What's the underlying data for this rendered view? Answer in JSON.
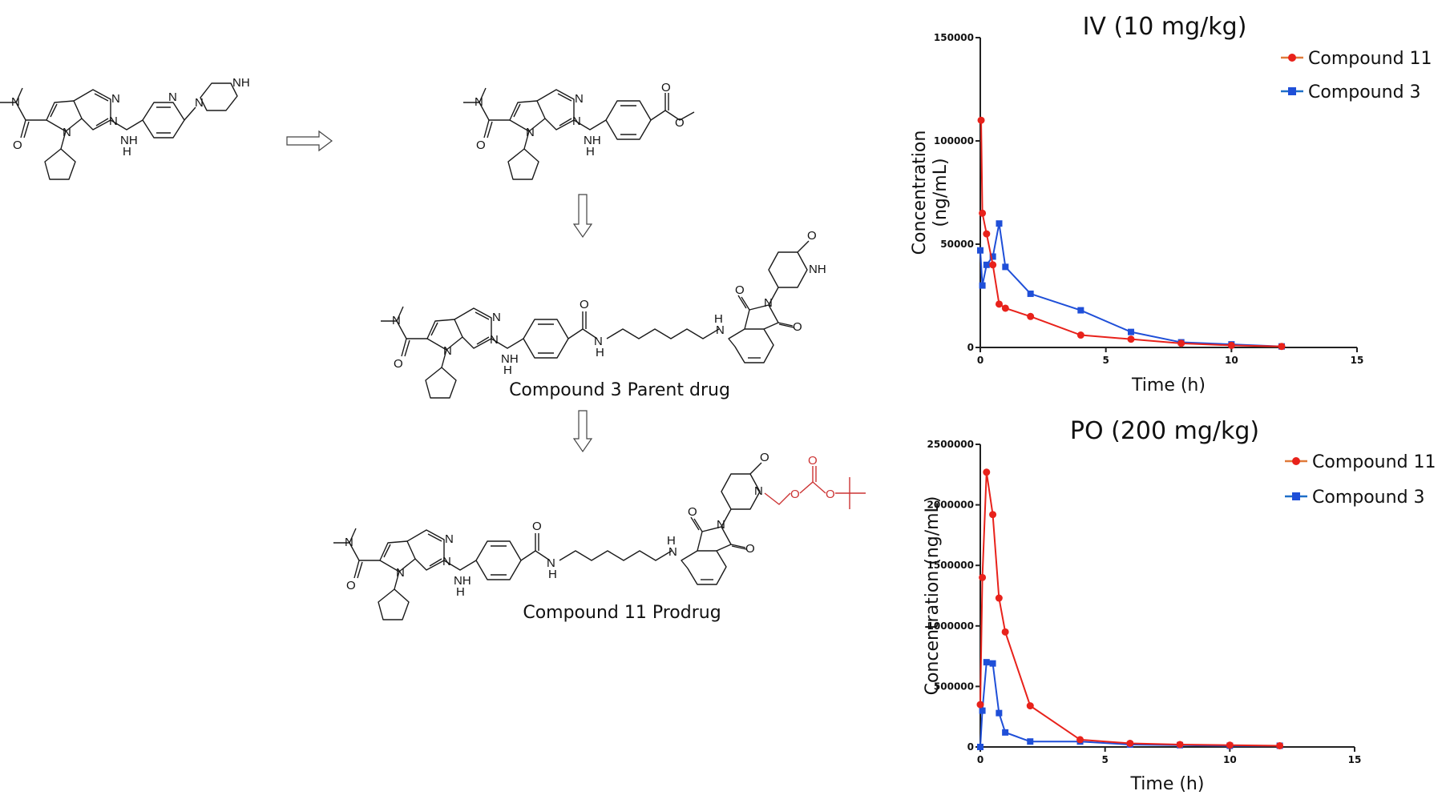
{
  "captions": {
    "parent": "Compound 3 Parent drug",
    "prodrug": "Compound 11 Prodrug"
  },
  "atoms": {
    "N": "N",
    "NH": "NH",
    "H": "H",
    "O": "O"
  },
  "colors": {
    "compound11": "#e8221b",
    "compound3": "#1f4fd8",
    "legend11_line": "#e07a3a",
    "legend3_line": "#1f6fc8",
    "prodrug_group": "#cc3333"
  },
  "chart_data": [
    {
      "type": "line",
      "title": "IV (10 mg/kg)",
      "xlabel": "Time (h)",
      "ylabel": "Concentration (ng/mL)",
      "ylabel_lines": [
        "Concentration",
        "(ng/mL)"
      ],
      "xlim": [
        0,
        15
      ],
      "ylim": [
        0,
        150000
      ],
      "xticks": [
        0,
        5,
        10,
        15
      ],
      "yticks": [
        0,
        50000,
        100000,
        150000
      ],
      "ytick_labels": [
        "0",
        "50000",
        "100000",
        "150000"
      ],
      "grid": false,
      "legend_position": "top-right",
      "series": [
        {
          "name": "Compound 11",
          "marker": "circle",
          "x": [
            0.033,
            0.083,
            0.25,
            0.5,
            0.75,
            1,
            2,
            4,
            6,
            8,
            10,
            12
          ],
          "y": [
            110000,
            65000,
            55000,
            40000,
            21000,
            19000,
            15000,
            6000,
            4000,
            2000,
            1000,
            500
          ]
        },
        {
          "name": "Compound 3",
          "marker": "square",
          "x": [
            0,
            0.083,
            0.25,
            0.5,
            0.75,
            1,
            2,
            4,
            6,
            8,
            10,
            12
          ],
          "y": [
            47000,
            30000,
            40000,
            44000,
            60000,
            39000,
            26000,
            18000,
            7500,
            2500,
            1500,
            500
          ]
        }
      ]
    },
    {
      "type": "line",
      "title": "PO (200 mg/kg)",
      "xlabel": "Time (h)",
      "ylabel": "Concentration (ng/mL)",
      "ylabel_lines": [
        "Concentration (ng/mL)"
      ],
      "xlim": [
        0,
        15
      ],
      "ylim": [
        0,
        2500000
      ],
      "xticks": [
        0,
        5,
        10,
        15
      ],
      "yticks": [
        0,
        500000,
        1000000,
        1500000,
        2000000,
        2500000
      ],
      "ytick_labels": [
        "0",
        "500000",
        "1000000",
        "1500000",
        "2000000",
        "2500000"
      ],
      "grid": false,
      "legend_position": "top-right",
      "series": [
        {
          "name": "Compound 11",
          "marker": "circle",
          "x": [
            0,
            0.083,
            0.25,
            0.5,
            0.75,
            1,
            2,
            4,
            6,
            8,
            10,
            12
          ],
          "y": [
            350000,
            1400000,
            2270000,
            1920000,
            1230000,
            950000,
            340000,
            60000,
            30000,
            20000,
            15000,
            10000
          ]
        },
        {
          "name": "Compound 3",
          "marker": "square",
          "x": [
            0,
            0.083,
            0.25,
            0.5,
            0.75,
            1,
            2,
            4,
            6,
            8,
            10,
            12
          ],
          "y": [
            0,
            300000,
            700000,
            690000,
            280000,
            120000,
            45000,
            45000,
            20000,
            15000,
            10000,
            10000
          ]
        }
      ]
    }
  ]
}
